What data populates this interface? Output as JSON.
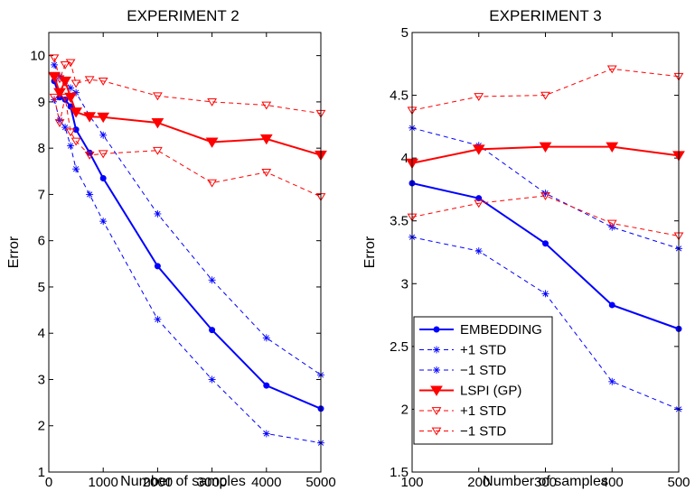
{
  "chart_data": [
    {
      "type": "line",
      "title": "EXPERIMENT 2",
      "xlabel": "Number of samples",
      "ylabel": "Error",
      "xlim": [
        0,
        5000
      ],
      "ylim": [
        1,
        10.5
      ],
      "xticks": [
        0,
        1000,
        2000,
        3000,
        4000,
        5000
      ],
      "yticks": [
        1,
        2,
        3,
        4,
        5,
        6,
        7,
        8,
        9,
        10
      ],
      "grid": false,
      "legend": null,
      "x": [
        100,
        200,
        300,
        400,
        500,
        750,
        1000,
        2000,
        3000,
        4000,
        5000
      ],
      "series": [
        {
          "name": "EMBEDDING",
          "color": "#0000ff",
          "style": "solid",
          "marker": "dot",
          "values": [
            9.45,
            9.1,
            9.05,
            8.9,
            8.4,
            7.9,
            7.35,
            5.45,
            4.07,
            2.87,
            2.37
          ]
        },
        {
          "name": "+1 STD",
          "color": "#0000ff",
          "style": "dashed",
          "marker": "star",
          "values": [
            9.8,
            9.55,
            9.45,
            9.3,
            9.2,
            8.7,
            8.28,
            6.58,
            5.15,
            3.9,
            3.1
          ]
        },
        {
          "name": "−1 STD",
          "color": "#0000ff",
          "style": "dashed",
          "marker": "star",
          "values": [
            9.05,
            8.6,
            8.45,
            8.05,
            7.55,
            7.0,
            6.42,
            4.3,
            3.0,
            1.83,
            1.63
          ]
        },
        {
          "name": "LSPI (GP)",
          "color": "#ff0000",
          "style": "solid",
          "marker": "triangle-filled",
          "values": [
            9.55,
            9.2,
            9.45,
            9.1,
            8.78,
            8.68,
            8.67,
            8.55,
            8.13,
            8.2,
            7.85
          ]
        },
        {
          "name": "+1 STD",
          "color": "#ff0000",
          "style": "dashed",
          "marker": "triangle-open",
          "values": [
            9.95,
            9.5,
            9.8,
            9.85,
            9.4,
            9.48,
            9.45,
            9.13,
            9.0,
            8.93,
            8.75
          ]
        },
        {
          "name": "−1 STD",
          "color": "#ff0000",
          "style": "dashed",
          "marker": "triangle-open",
          "values": [
            9.1,
            8.55,
            9.1,
            8.35,
            8.15,
            7.85,
            7.88,
            7.95,
            7.25,
            7.48,
            6.95
          ]
        }
      ]
    },
    {
      "type": "line",
      "title": "EXPERIMENT 3",
      "xlabel": "Number of samples",
      "ylabel": "Error",
      "xlim": [
        100,
        500
      ],
      "ylim": [
        1.5,
        5
      ],
      "xticks": [
        100,
        200,
        300,
        400,
        500
      ],
      "yticks": [
        1.5,
        2,
        2.5,
        3,
        3.5,
        4,
        4.5,
        5
      ],
      "grid": false,
      "legend": "bottom-left",
      "x": [
        100,
        200,
        300,
        400,
        500
      ],
      "series": [
        {
          "name": "EMBEDDING",
          "color": "#0000ff",
          "style": "solid",
          "marker": "dot",
          "values": [
            3.8,
            3.68,
            3.32,
            2.83,
            2.64
          ]
        },
        {
          "name": "+1 STD",
          "color": "#0000ff",
          "style": "dashed",
          "marker": "star",
          "values": [
            4.24,
            4.1,
            3.72,
            3.45,
            3.28
          ]
        },
        {
          "name": "−1 STD",
          "color": "#0000ff",
          "style": "dashed",
          "marker": "star",
          "values": [
            3.37,
            3.26,
            2.92,
            2.22,
            2.0
          ]
        },
        {
          "name": "LSPI (GP)",
          "color": "#ff0000",
          "style": "solid",
          "marker": "triangle-filled",
          "values": [
            3.96,
            4.07,
            4.09,
            4.09,
            4.02
          ]
        },
        {
          "name": "+1 STD",
          "color": "#ff0000",
          "style": "dashed",
          "marker": "triangle-open",
          "values": [
            4.38,
            4.49,
            4.5,
            4.71,
            4.65
          ]
        },
        {
          "name": "−1 STD",
          "color": "#ff0000",
          "style": "dashed",
          "marker": "triangle-open",
          "values": [
            3.53,
            3.64,
            3.7,
            3.48,
            3.38
          ]
        }
      ]
    }
  ]
}
